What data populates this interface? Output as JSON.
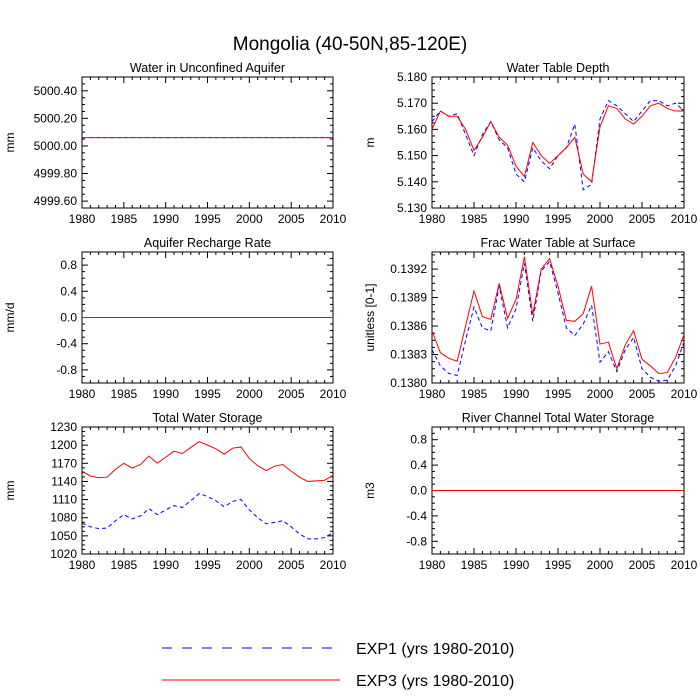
{
  "figure": {
    "title": "Mongolia (40-50N,85-120E)",
    "colors": {
      "exp1": "#0000ff",
      "exp3": "#ff0000",
      "axis": "#000000",
      "background": "#ffffff"
    }
  },
  "legend": {
    "items": [
      {
        "label": "EXP1 (yrs 1980-2010)",
        "color": "#0000ff",
        "style": "dashed"
      },
      {
        "label": "EXP3 (yrs 1980-2010)",
        "color": "#ff0000",
        "style": "solid"
      }
    ]
  },
  "chart_data": [
    {
      "type": "line",
      "title": "Water in Unconfined Aquifer",
      "ylabel": "mm",
      "xlim": [
        1980,
        2010
      ],
      "ylim": [
        4999.55,
        5000.5
      ],
      "xticks": [
        1980,
        1985,
        1990,
        1995,
        2000,
        2005,
        2010
      ],
      "xticklabels": [
        "1980",
        "1985",
        "1990",
        "1995",
        "2000",
        "2005",
        "2010"
      ],
      "yticks": [
        4999.6,
        4999.8,
        5000.0,
        5000.2,
        5000.4
      ],
      "yticklabels": [
        "4999.60",
        "4999.80",
        "5000.00",
        "5000.20",
        "5000.40"
      ],
      "x": [
        1980,
        2010
      ],
      "series": [
        {
          "name": "EXP1",
          "color": "#0000ff",
          "dash": true,
          "values": [
            5000.06,
            5000.06
          ]
        },
        {
          "name": "EXP3",
          "color": "#ff0000",
          "dash": false,
          "values": [
            5000.06,
            5000.06
          ]
        }
      ]
    },
    {
      "type": "line",
      "title": "Water Table Depth",
      "ylabel": "m",
      "xlim": [
        1980,
        2010
      ],
      "ylim": [
        5.13,
        5.18
      ],
      "xticks": [
        1980,
        1985,
        1990,
        1995,
        2000,
        2005,
        2010
      ],
      "xticklabels": [
        "1980",
        "1985",
        "1990",
        "1995",
        "2000",
        "2005",
        "2010"
      ],
      "yticks": [
        5.13,
        5.14,
        5.15,
        5.16,
        5.17,
        5.18
      ],
      "yticklabels": [
        "5.130",
        "5.140",
        "5.150",
        "5.160",
        "5.170",
        "5.180"
      ],
      "x": [
        1980,
        1981,
        1982,
        1983,
        1984,
        1985,
        1986,
        1987,
        1988,
        1989,
        1990,
        1991,
        1992,
        1993,
        1994,
        1995,
        1996,
        1997,
        1998,
        1999,
        2000,
        2001,
        2002,
        2003,
        2004,
        2005,
        2006,
        2007,
        2008,
        2009,
        2010
      ],
      "series": [
        {
          "name": "EXP1",
          "color": "#0000ff",
          "dash": true,
          "values": [
            5.163,
            5.167,
            5.165,
            5.166,
            5.158,
            5.15,
            5.158,
            5.163,
            5.156,
            5.153,
            5.143,
            5.14,
            5.153,
            5.148,
            5.145,
            5.15,
            5.153,
            5.162,
            5.137,
            5.139,
            5.164,
            5.171,
            5.169,
            5.166,
            5.163,
            5.167,
            5.171,
            5.171,
            5.169,
            5.17,
            5.167
          ]
        },
        {
          "name": "EXP3",
          "color": "#ff0000",
          "dash": false,
          "values": [
            5.16,
            5.167,
            5.165,
            5.165,
            5.16,
            5.152,
            5.157,
            5.163,
            5.157,
            5.154,
            5.146,
            5.142,
            5.155,
            5.15,
            5.147,
            5.15,
            5.153,
            5.157,
            5.143,
            5.14,
            5.161,
            5.169,
            5.168,
            5.164,
            5.162,
            5.165,
            5.169,
            5.17,
            5.168,
            5.167,
            5.167
          ]
        }
      ]
    },
    {
      "type": "line",
      "title": "Aquifer Recharge Rate",
      "ylabel": "mm/d",
      "xlim": [
        1980,
        2010
      ],
      "ylim": [
        -1.0,
        1.0
      ],
      "xticks": [
        1980,
        1985,
        1990,
        1995,
        2000,
        2005,
        2010
      ],
      "xticklabels": [
        "1980",
        "1985",
        "1990",
        "1995",
        "2000",
        "2005",
        "2010"
      ],
      "yticks": [
        -0.8,
        -0.4,
        0.0,
        0.4,
        0.8
      ],
      "yticklabels": [
        "-0.8",
        "-0.4",
        "0.0",
        "0.4",
        "0.8"
      ],
      "x": [
        1980,
        2010
      ],
      "series": [
        {
          "name": "EXP1",
          "color": "#0000ff",
          "dash": true,
          "values": [
            0.0,
            0.0
          ]
        },
        {
          "name": "EXP3",
          "color": "#ff0000",
          "dash": false,
          "values": [
            0.0,
            0.0
          ]
        }
      ]
    },
    {
      "type": "line",
      "title": "Frac Water Table at Surface",
      "ylabel": "unitless [0-1]",
      "xlim": [
        1980,
        2010
      ],
      "ylim": [
        0.138,
        0.13938
      ],
      "xticks": [
        1980,
        1985,
        1990,
        1995,
        2000,
        2005,
        2010
      ],
      "xticklabels": [
        "1980",
        "1985",
        "1990",
        "1995",
        "2000",
        "2005",
        "2010"
      ],
      "yticks": [
        0.138,
        0.1383,
        0.1386,
        0.1389,
        0.1392
      ],
      "yticklabels": [
        "0.1380",
        "0.1383",
        "0.1386",
        "0.1389",
        "0.1392"
      ],
      "x": [
        1980,
        1981,
        1982,
        1983,
        1984,
        1985,
        1986,
        1987,
        1988,
        1989,
        1990,
        1991,
        1992,
        1993,
        1994,
        1995,
        1996,
        1997,
        1998,
        1999,
        2000,
        2001,
        2002,
        2003,
        2004,
        2005,
        2006,
        2007,
        2008,
        2009,
        2010
      ],
      "series": [
        {
          "name": "EXP1",
          "color": "#0000ff",
          "dash": true,
          "values": [
            0.13835,
            0.13818,
            0.1381,
            0.13808,
            0.13845,
            0.1388,
            0.13858,
            0.13855,
            0.13902,
            0.13858,
            0.13878,
            0.13926,
            0.13865,
            0.13918,
            0.13928,
            0.13895,
            0.13858,
            0.1385,
            0.13862,
            0.13882,
            0.13822,
            0.13833,
            0.13812,
            0.13835,
            0.13848,
            0.13815,
            0.13806,
            0.13802,
            0.13803,
            0.13818,
            0.13843
          ]
        },
        {
          "name": "EXP3",
          "color": "#ff0000",
          "dash": false,
          "values": [
            0.13855,
            0.13832,
            0.13826,
            0.13823,
            0.1386,
            0.13897,
            0.1387,
            0.13867,
            0.13905,
            0.13868,
            0.13888,
            0.13933,
            0.13872,
            0.1392,
            0.13931,
            0.13902,
            0.13866,
            0.13865,
            0.13873,
            0.13902,
            0.13841,
            0.13843,
            0.13815,
            0.1384,
            0.13855,
            0.13825,
            0.13818,
            0.1381,
            0.13811,
            0.13827,
            0.13851
          ]
        }
      ]
    },
    {
      "type": "line",
      "title": "Total Water Storage",
      "ylabel": "mm",
      "xlim": [
        1980,
        2010
      ],
      "ylim": [
        1020,
        1230
      ],
      "xticks": [
        1980,
        1985,
        1990,
        1995,
        2000,
        2005,
        2010
      ],
      "xticklabels": [
        "1980",
        "1985",
        "1990",
        "1995",
        "2000",
        "2005",
        "2010"
      ],
      "yticks": [
        1020,
        1050,
        1080,
        1110,
        1140,
        1170,
        1200,
        1230
      ],
      "yticklabels": [
        "1020",
        "1050",
        "1080",
        "1110",
        "1140",
        "1170",
        "1200",
        "1230"
      ],
      "x": [
        1980,
        1981,
        1982,
        1983,
        1984,
        1985,
        1986,
        1987,
        1988,
        1989,
        1990,
        1991,
        1992,
        1993,
        1994,
        1995,
        1996,
        1997,
        1998,
        1999,
        2000,
        2001,
        2002,
        2003,
        2004,
        2005,
        2006,
        2007,
        2008,
        2009,
        2010
      ],
      "series": [
        {
          "name": "EXP1",
          "color": "#0000ff",
          "dash": true,
          "values": [
            1071,
            1065,
            1062,
            1063,
            1075,
            1085,
            1078,
            1083,
            1095,
            1085,
            1093,
            1100,
            1097,
            1108,
            1120,
            1115,
            1108,
            1098,
            1107,
            1110,
            1093,
            1080,
            1070,
            1072,
            1075,
            1065,
            1053,
            1045,
            1045,
            1047,
            1055
          ]
        },
        {
          "name": "EXP3",
          "color": "#ff0000",
          "dash": false,
          "values": [
            1157,
            1149,
            1146,
            1147,
            1160,
            1170,
            1162,
            1168,
            1182,
            1170,
            1180,
            1190,
            1186,
            1196,
            1206,
            1200,
            1194,
            1185,
            1195,
            1197,
            1178,
            1166,
            1158,
            1165,
            1168,
            1157,
            1147,
            1140,
            1141,
            1142,
            1150
          ]
        }
      ]
    },
    {
      "type": "line",
      "title": "River Channel Total Water Storage",
      "ylabel": "m3",
      "xlim": [
        1980,
        2010
      ],
      "ylim": [
        -1.0,
        1.0
      ],
      "xticks": [
        1980,
        1985,
        1990,
        1995,
        2000,
        2005,
        2010
      ],
      "xticklabels": [
        "1980",
        "1985",
        "1990",
        "1995",
        "2000",
        "2005",
        "2010"
      ],
      "yticks": [
        -0.8,
        -0.4,
        0.0,
        0.4,
        0.8
      ],
      "yticklabels": [
        "-0.8",
        "-0.4",
        "0.0",
        "0.4",
        "0.8"
      ],
      "x": [
        1980,
        2010
      ],
      "series": [
        {
          "name": "EXP1",
          "color": "#0000ff",
          "dash": true,
          "values": [
            0.0,
            0.0
          ]
        },
        {
          "name": "EXP3",
          "color": "#ff0000",
          "dash": false,
          "values": [
            0.0,
            0.0
          ]
        }
      ]
    }
  ]
}
